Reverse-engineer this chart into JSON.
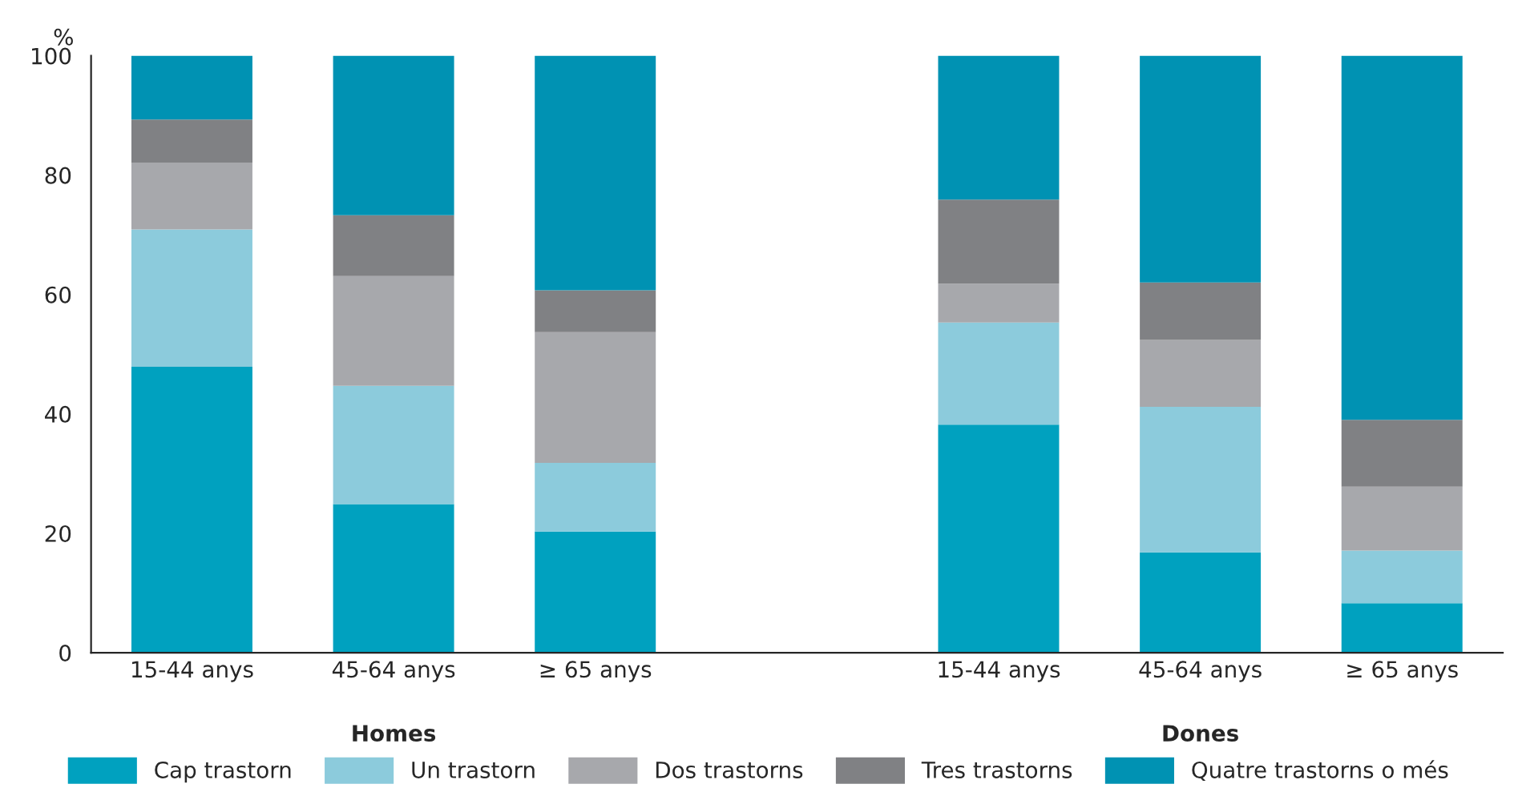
{
  "chart_data": {
    "type": "bar",
    "stacked": true,
    "ylabel": "%",
    "categories": [
      "15-44 anys",
      "45-64 anys",
      "≥ 65 anys",
      null,
      "15-44 anys",
      "45-64 anys",
      "≥ 65 anys"
    ],
    "series": [
      {
        "name": "Cap trastorn",
        "color": "#00a1bf",
        "values": [
          47.9,
          24.9,
          20.3,
          null,
          38.2,
          16.8,
          8.3
        ]
      },
      {
        "name": "Un trastorn",
        "color": "#8ccbdc",
        "values": [
          23.0,
          19.8,
          11.5,
          null,
          17.1,
          24.4,
          8.8
        ]
      },
      {
        "name": "Dos trastorns",
        "color": "#a7a8ac",
        "values": [
          11.2,
          18.4,
          21.9,
          null,
          6.5,
          11.2,
          10.7
        ]
      },
      {
        "name": "Tres trastorns",
        "color": "#808184",
        "values": [
          7.2,
          10.2,
          7.0,
          null,
          14.1,
          9.6,
          11.2
        ]
      },
      {
        "name": "Quatre trastorns o més",
        "color": "#0092b3",
        "values": [
          10.7,
          26.7,
          39.3,
          null,
          24.1,
          38.0,
          61.0
        ]
      }
    ],
    "annotations": [
      "Homes",
      "Dones"
    ],
    "ylim": [
      0,
      100
    ],
    "yticks": [
      0,
      20,
      40,
      60,
      80,
      100
    ],
    "grid": false,
    "legend": "bottom"
  }
}
